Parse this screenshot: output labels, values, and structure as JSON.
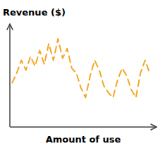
{
  "chart_data": {
    "type": "line",
    "ylabel": "Revenue ($)",
    "xlabel": "Amount of use",
    "x": [
      0,
      1,
      2,
      3,
      4,
      5,
      6,
      7,
      8,
      9,
      10,
      11,
      12,
      13,
      14,
      15,
      16,
      17,
      18,
      19,
      20,
      21,
      22,
      23,
      24,
      25,
      26,
      27,
      28,
      29,
      30
    ],
    "values": [
      0.45,
      0.55,
      0.68,
      0.58,
      0.72,
      0.62,
      0.78,
      0.64,
      0.85,
      0.68,
      0.9,
      0.7,
      0.8,
      0.6,
      0.55,
      0.4,
      0.3,
      0.52,
      0.68,
      0.58,
      0.42,
      0.35,
      0.3,
      0.48,
      0.6,
      0.52,
      0.38,
      0.3,
      0.55,
      0.68,
      0.55
    ],
    "color": "#F5A623",
    "line_style": "dashed",
    "xlim": [
      -0.5,
      31.5
    ],
    "ylim": [
      0.0,
      1.05
    ],
    "tick_labels": false,
    "grid": false
  }
}
